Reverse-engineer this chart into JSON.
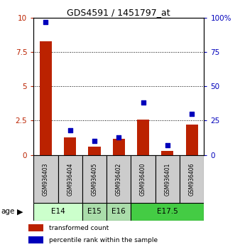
{
  "title": "GDS4591 / 1451797_at",
  "samples": [
    "GSM936403",
    "GSM936404",
    "GSM936405",
    "GSM936402",
    "GSM936400",
    "GSM936401",
    "GSM936406"
  ],
  "transformed_count": [
    8.3,
    1.3,
    0.6,
    1.2,
    2.6,
    0.3,
    2.2
  ],
  "percentile_rank": [
    97,
    18,
    10,
    13,
    38,
    7,
    30
  ],
  "age_groups": [
    {
      "label": "E14",
      "samples": [
        0,
        1
      ],
      "color": "#ccffcc"
    },
    {
      "label": "E15",
      "samples": [
        2
      ],
      "color": "#aaddaa"
    },
    {
      "label": "E16",
      "samples": [
        3
      ],
      "color": "#aaddaa"
    },
    {
      "label": "E17.5",
      "samples": [
        4,
        5,
        6
      ],
      "color": "#44cc44"
    }
  ],
  "left_ylim": [
    0,
    10
  ],
  "left_yticks": [
    0,
    2.5,
    5,
    7.5,
    10
  ],
  "left_ytick_labels": [
    "0",
    "2.5",
    "5",
    "7.5",
    "10"
  ],
  "right_ylim": [
    0,
    100
  ],
  "right_yticks": [
    0,
    25,
    50,
    75,
    100
  ],
  "right_ytick_labels": [
    "0",
    "25",
    "50",
    "75",
    "100%"
  ],
  "bar_color": "#bb2200",
  "dot_color": "#0000bb",
  "bg_color": "#cccccc",
  "grid_lines": [
    2.5,
    5.0,
    7.5
  ],
  "bar_width": 0.5,
  "dot_size": 18,
  "legend_items": [
    {
      "label": "transformed count",
      "color": "#bb2200"
    },
    {
      "label": "percentile rank within the sample",
      "color": "#0000bb"
    }
  ]
}
